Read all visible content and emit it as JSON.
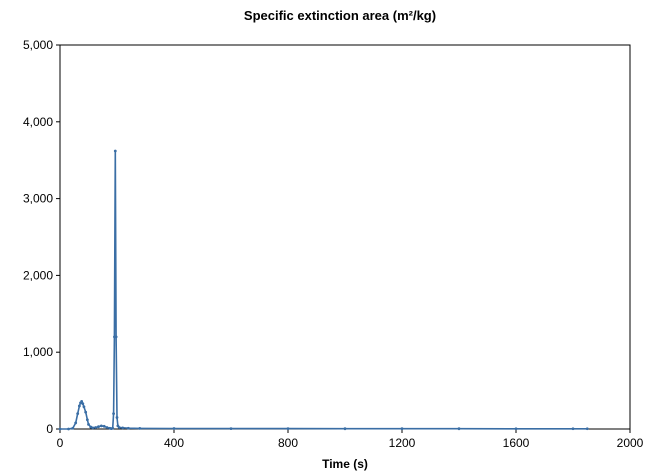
{
  "chart_data": {
    "type": "line",
    "title": "Specific extinction area (m²/kg)",
    "xlabel": "Time (s)",
    "ylabel": "",
    "xlim": [
      0,
      2000
    ],
    "ylim": [
      0,
      5000
    ],
    "x_ticks": [
      0,
      400,
      800,
      1200,
      1600,
      2000
    ],
    "x_tick_labels": [
      "0",
      "400",
      "800",
      "1200",
      "1600",
      "2000"
    ],
    "y_ticks": [
      0,
      1000,
      2000,
      3000,
      4000,
      5000
    ],
    "y_tick_labels": [
      "0",
      "1,000",
      "2,000",
      "3,000",
      "4,000",
      "5,000"
    ],
    "grid": false,
    "legend": "none",
    "series": [
      {
        "color": "#3a6ea5",
        "x": [
          0,
          30,
          45,
          55,
          62,
          68,
          72,
          76,
          80,
          84,
          90,
          96,
          100,
          108,
          115,
          125,
          135,
          145,
          155,
          165,
          175,
          180,
          185,
          188,
          191,
          194,
          197,
          200,
          203,
          208,
          220,
          240,
          280,
          400,
          600,
          800,
          1000,
          1200,
          1400,
          1600,
          1800,
          1850
        ],
        "y": [
          0,
          0,
          10,
          80,
          200,
          300,
          340,
          360,
          330,
          290,
          220,
          120,
          60,
          25,
          15,
          20,
          30,
          40,
          35,
          20,
          10,
          5,
          10,
          200,
          1200,
          3620,
          1200,
          150,
          40,
          20,
          15,
          10,
          8,
          6,
          5,
          5,
          4,
          4,
          4,
          3,
          3,
          3
        ]
      }
    ]
  }
}
